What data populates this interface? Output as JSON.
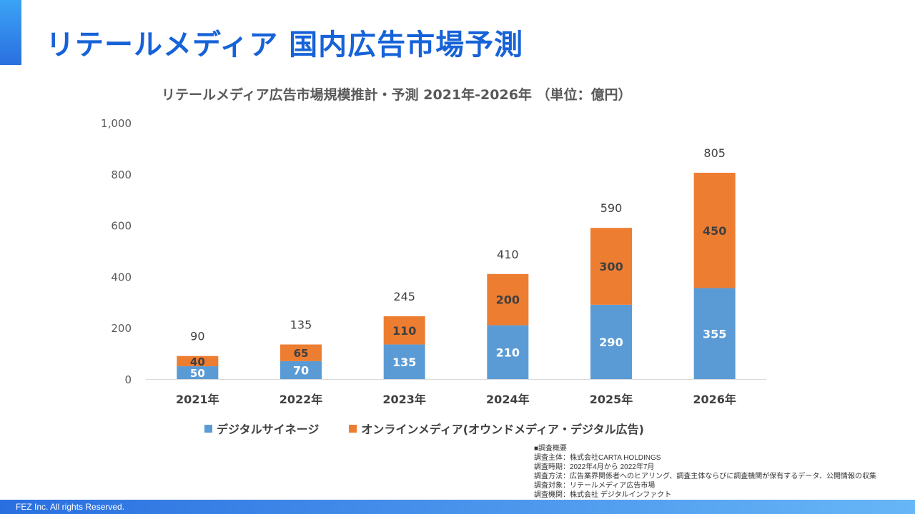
{
  "page": {
    "title": "リテールメディア 国内広告市場予測",
    "footer": "FEZ Inc. All rights Reserved."
  },
  "colors": {
    "accent": "#1662d8",
    "series_digital": "#5b9bd5",
    "series_online": "#ed7d31"
  },
  "chart_data": {
    "type": "bar",
    "stacked": true,
    "title": "リテールメディア広告市場規模推計・予測 2021年-2026年 （単位：億円）",
    "categories": [
      "2021年",
      "2022年",
      "2023年",
      "2024年",
      "2025年",
      "2026年"
    ],
    "series": [
      {
        "name": "デジタルサイネージ",
        "values": [
          50,
          70,
          135,
          210,
          290,
          355
        ]
      },
      {
        "name": "オンラインメディア(オウンドメディア・デジタル広告)",
        "values": [
          40,
          65,
          110,
          200,
          300,
          450
        ]
      }
    ],
    "totals": [
      90,
      135,
      245,
      410,
      590,
      805
    ],
    "ylim": [
      0,
      1000
    ],
    "yticks": [
      0,
      200,
      400,
      600,
      800,
      1000
    ],
    "ytick_labels": [
      "0",
      "200",
      "400",
      "600",
      "800",
      "1,000"
    ],
    "grid": false,
    "legend": "bottom"
  },
  "notes": [
    "■調査概要",
    "調査主体：株式会社CARTA HOLDINGS",
    "調査時期：2022年4月から 2022年7月",
    "調査方法：広告業界関係者へのヒアリング、調査主体ならびに調査機関が保有するデータ、公開情報の収集",
    "調査対象：リテールメディア広告市場",
    "調査機関：株式会社 デジタルインファクト"
  ]
}
